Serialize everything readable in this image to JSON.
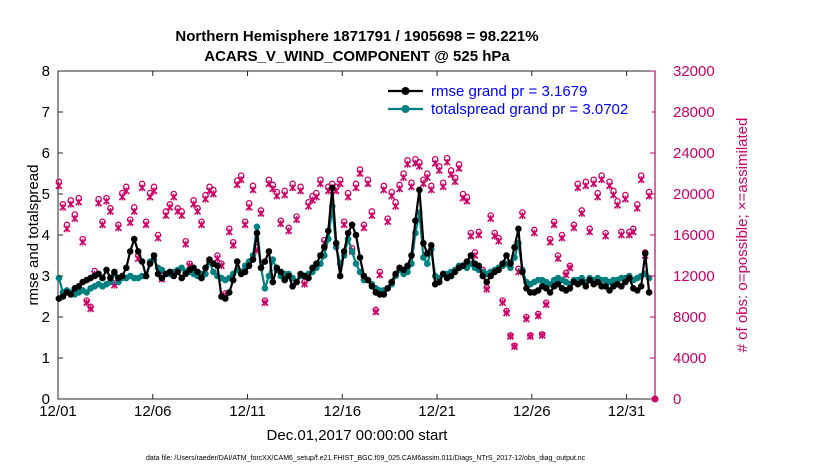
{
  "chart_data": {
    "type": "line",
    "title_line1": "Northern Hemisphere 1871791 / 1905698 = 98.221%",
    "title_line2": "ACARS_V_WIND_COMPONENT @ 525 hPa",
    "xlabel": "Dec.01,2017 00:00:00 start",
    "ylabel_left": "rmse and totalspread",
    "ylabel_right": "# of obs: o=possible; ×=assimilated",
    "xlim": [
      0,
      31.5
    ],
    "ylim_left": [
      0,
      8
    ],
    "ylim_right": [
      0,
      32000
    ],
    "x_ticks": [
      0,
      5,
      10,
      15,
      20,
      25,
      30
    ],
    "x_tick_labels": [
      "12/01",
      "12/06",
      "12/11",
      "12/16",
      "12/21",
      "12/26",
      "12/31"
    ],
    "y_left_ticks": [
      "0",
      "1",
      "2",
      "3",
      "4",
      "5",
      "6",
      "7",
      "8"
    ],
    "y_right_ticks": [
      "0",
      "4000",
      "8000",
      "12000",
      "16000",
      "20000",
      "24000",
      "28000",
      "32000"
    ],
    "footnote": "data file: /Users/raeder/DAI/ATM_forcXX/CAM6_setup/f.e21.FHIST_BGC.f09_025.CAM6assim.011/Diags_NTrS_2017-12/obs_diag_output.nc",
    "colors": {
      "rmse": "#000000",
      "spread": "#008080",
      "obs": "#cc0066",
      "legend_text": "#0000ff"
    },
    "series": [
      {
        "name": "rmse grand pr = 3.1679",
        "axis": "left",
        "marker": "filled-circle",
        "values": [
          2.45,
          2.5,
          2.6,
          2.55,
          2.7,
          2.75,
          2.85,
          2.9,
          2.95,
          3.0,
          3.05,
          2.95,
          3.15,
          2.95,
          3.1,
          2.95,
          3.0,
          3.2,
          3.6,
          3.9,
          3.6,
          3.35,
          3.0,
          3.3,
          3.5,
          3.05,
          2.95,
          3.05,
          3.1,
          3.0,
          3.1,
          2.95,
          3.05,
          3.15,
          3.2,
          3.1,
          2.95,
          3.2,
          3.4,
          3.3,
          3.25,
          2.5,
          2.45,
          2.6,
          2.9,
          3.35,
          3.05,
          3.1,
          3.25,
          3.4,
          4.05,
          3.2,
          3.35,
          3.6,
          2.85,
          3.2,
          3.1,
          2.9,
          3.0,
          2.75,
          2.85,
          3.05,
          3.0,
          2.95,
          3.2,
          3.3,
          3.5,
          3.7,
          4.1,
          5.15,
          3.8,
          3.0,
          3.6,
          4.05,
          4.25,
          4.0,
          3.45,
          3.0,
          2.9,
          2.75,
          2.6,
          2.55,
          2.55,
          2.7,
          2.85,
          3.05,
          3.2,
          3.15,
          3.25,
          3.5,
          4.35,
          5.1,
          3.8,
          3.55,
          3.75,
          2.8,
          2.85,
          3.05,
          2.95,
          3.0,
          3.1,
          3.2,
          3.25,
          3.35,
          3.5,
          3.3,
          3.25,
          3.0,
          2.85,
          3.0,
          3.1,
          3.15,
          3.3,
          3.5,
          3.3,
          3.7,
          4.15,
          3.1,
          2.7,
          2.6,
          2.6,
          2.65,
          2.75,
          2.7,
          2.6,
          2.75,
          2.8,
          2.7,
          2.65,
          2.7,
          2.85,
          2.8,
          2.85,
          2.75,
          2.9,
          2.8,
          2.85,
          2.75,
          2.75,
          2.65,
          2.75,
          2.8,
          2.75,
          2.85,
          2.95,
          2.7,
          2.65,
          2.75,
          3.55,
          2.6
        ]
      },
      {
        "name": "totalspread grand pr = 3.0702",
        "axis": "left",
        "marker": "filled-circle",
        "values": [
          2.95,
          2.6,
          2.65,
          2.6,
          2.55,
          2.6,
          2.65,
          2.6,
          2.7,
          2.75,
          2.8,
          2.75,
          2.8,
          2.85,
          3.05,
          2.85,
          2.95,
          2.95,
          3.0,
          2.95,
          2.95,
          3.0,
          3.0,
          3.35,
          3.4,
          3.2,
          3.15,
          3.05,
          3.05,
          3.1,
          3.15,
          3.2,
          3.1,
          3.1,
          3.05,
          3.0,
          3.05,
          3.05,
          3.35,
          3.1,
          3.0,
          2.95,
          2.9,
          2.95,
          3.05,
          3.15,
          3.1,
          3.25,
          3.35,
          3.5,
          4.2,
          3.2,
          2.7,
          3.0,
          3.4,
          3.15,
          3.0,
          3.05,
          3.05,
          2.95,
          2.85,
          3.0,
          3.0,
          3.05,
          3.1,
          3.2,
          3.3,
          3.5,
          3.9,
          4.7,
          3.7,
          3.3,
          3.5,
          3.9,
          3.6,
          3.3,
          3.1,
          2.9,
          2.9,
          2.8,
          2.7,
          2.65,
          2.65,
          2.7,
          2.8,
          3.0,
          3.15,
          3.05,
          3.1,
          3.3,
          4.05,
          4.55,
          3.45,
          3.3,
          3.65,
          3.0,
          2.95,
          3.05,
          3.05,
          3.1,
          3.15,
          3.25,
          3.25,
          3.2,
          3.3,
          3.2,
          3.15,
          3.1,
          3.05,
          3.1,
          3.15,
          3.2,
          3.25,
          3.3,
          3.2,
          3.45,
          3.8,
          3.15,
          2.85,
          2.8,
          2.85,
          2.9,
          2.9,
          2.85,
          2.8,
          2.9,
          2.95,
          2.9,
          2.85,
          2.8,
          2.9,
          2.9,
          2.95,
          2.85,
          2.95,
          2.9,
          2.95,
          2.9,
          2.9,
          2.85,
          2.9,
          2.9,
          2.95,
          2.95,
          3.0,
          2.9,
          2.95,
          3.0,
          3.05,
          2.95
        ]
      },
      {
        "name": "possible obs",
        "axis": "right",
        "marker": "open-circle",
        "values": [
          21200,
          19000,
          17000,
          19400,
          18000,
          19600,
          15600,
          9600,
          9000,
          12500,
          19500,
          17300,
          19600,
          18600,
          11300,
          17000,
          20100,
          20700,
          17500,
          18700,
          14000,
          21000,
          17300,
          20100,
          20700,
          16000,
          12000,
          18300,
          19000,
          20000,
          18600,
          18300,
          15400,
          13200,
          19400,
          18600,
          17300,
          19900,
          20700,
          20400,
          14000,
          13200,
          10300,
          16600,
          15300,
          21300,
          21800,
          17300,
          19100,
          20800,
          14800,
          18400,
          9600,
          21400,
          20900,
          20200,
          17400,
          20300,
          16700,
          21000,
          17800,
          20700,
          11400,
          19200,
          19800,
          20100,
          21400,
          15500,
          20700,
          21000,
          20700,
          21400,
          17300,
          20100,
          14700,
          21000,
          22400,
          17000,
          21400,
          18300,
          8700,
          12400,
          20800,
          17600,
          20200,
          19200,
          20900,
          22000,
          23300,
          21100,
          23400,
          23100,
          21400,
          22000,
          20800,
          23400,
          22700,
          21100,
          23500,
          22300,
          21600,
          22900,
          20000,
          19700,
          16200,
          14300,
          16300,
          12600,
          10900,
          17900,
          16200,
          15700,
          9600,
          8600,
          6200,
          5200,
          12700,
          18200,
          8000,
          6200,
          16500,
          8300,
          6300,
          9400,
          15600,
          17300,
          14000,
          16000,
          12300,
          13000,
          17000,
          21000,
          18400,
          21200,
          16600,
          21400,
          20100,
          21800,
          16200,
          21200,
          20300,
          19300,
          16300,
          19900,
          16300,
          16600,
          19000,
          21800,
          14300,
          20200
        ]
      },
      {
        "name": "assimilated obs",
        "axis": "right",
        "marker": "cross",
        "values": [
          20800,
          18700,
          16600,
          19000,
          17600,
          19200,
          15300,
          9400,
          8800,
          12200,
          19100,
          17000,
          19300,
          18300,
          11100,
          16700,
          19700,
          20300,
          17200,
          18300,
          13700,
          20600,
          17000,
          19700,
          20300,
          15700,
          11700,
          17900,
          18700,
          19700,
          18300,
          17900,
          15100,
          13000,
          19000,
          18300,
          17000,
          19500,
          20300,
          20000,
          13700,
          13000,
          10100,
          16300,
          15000,
          20900,
          21400,
          17000,
          18700,
          20400,
          14500,
          18100,
          9400,
          21000,
          20500,
          19800,
          17100,
          19900,
          16400,
          20600,
          17500,
          20300,
          11200,
          18800,
          19400,
          19700,
          21000,
          15200,
          20300,
          20600,
          20300,
          21000,
          17000,
          19700,
          14400,
          20600,
          22000,
          16700,
          21000,
          17900,
          8500,
          12100,
          20400,
          17300,
          19800,
          18800,
          20500,
          21600,
          22900,
          20700,
          23000,
          22700,
          21000,
          21600,
          20400,
          23000,
          22300,
          20700,
          23100,
          21900,
          21200,
          22500,
          19600,
          19300,
          15900,
          14000,
          16000,
          12300,
          10700,
          17600,
          15900,
          15400,
          9400,
          8400,
          6100,
          5100,
          12400,
          17900,
          7800,
          6100,
          16200,
          8100,
          6200,
          9200,
          15300,
          17000,
          13700,
          15700,
          12100,
          12800,
          16700,
          20600,
          18100,
          20800,
          16300,
          21000,
          19700,
          21400,
          15900,
          20800,
          19900,
          18900,
          16000,
          19500,
          16000,
          16300,
          18600,
          21400,
          14000,
          19800
        ]
      }
    ]
  }
}
